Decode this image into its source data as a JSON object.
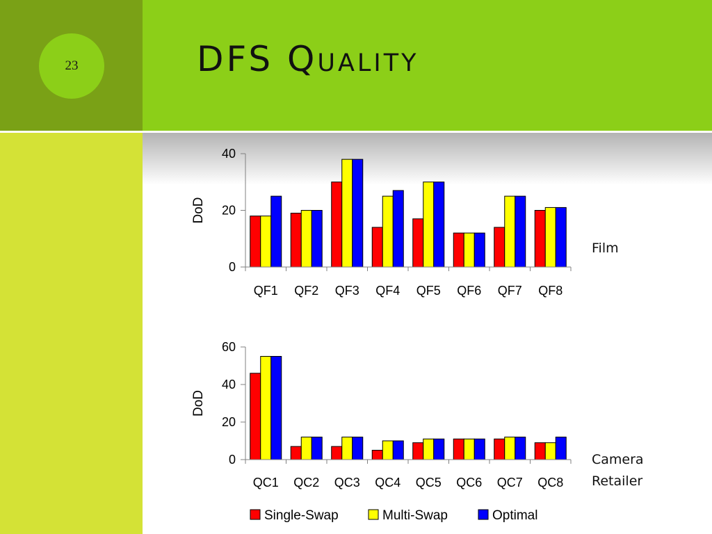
{
  "slide": {
    "number": "23",
    "title": "DFS Quality"
  },
  "colors": {
    "left_top": "#7aa116",
    "left_bottom": "#d4e236",
    "title_band": "#8ccf18",
    "series": [
      "#ff0000",
      "#ffff00",
      "#0000ff"
    ]
  },
  "chart_data": [
    {
      "type": "bar",
      "label": "Film",
      "ylabel": "DoD",
      "ylim": [
        0,
        40
      ],
      "yticks": [
        0,
        20,
        40
      ],
      "categories": [
        "QF1",
        "QF2",
        "QF3",
        "QF4",
        "QF5",
        "QF6",
        "QF7",
        "QF8"
      ],
      "series": [
        {
          "name": "Single-Swap",
          "values": [
            18,
            19,
            30,
            14,
            17,
            12,
            14,
            20
          ]
        },
        {
          "name": "Multi-Swap",
          "values": [
            18,
            20,
            38,
            25,
            30,
            12,
            25,
            21
          ]
        },
        {
          "name": "Optimal",
          "values": [
            25,
            20,
            38,
            27,
            30,
            12,
            25,
            21
          ]
        }
      ]
    },
    {
      "type": "bar",
      "label_lines": [
        "Camera",
        "Retailer"
      ],
      "ylabel": "DoD",
      "ylim": [
        0,
        60
      ],
      "yticks": [
        0,
        20,
        40,
        60
      ],
      "categories": [
        "QC1",
        "QC2",
        "QC3",
        "QC4",
        "QC5",
        "QC6",
        "QC7",
        "QC8"
      ],
      "series": [
        {
          "name": "Single-Swap",
          "values": [
            46,
            7,
            7,
            5,
            9,
            11,
            11,
            9
          ]
        },
        {
          "name": "Multi-Swap",
          "values": [
            55,
            12,
            12,
            10,
            11,
            11,
            12,
            9
          ]
        },
        {
          "name": "Optimal",
          "values": [
            55,
            12,
            12,
            10,
            11,
            11,
            12,
            12
          ]
        }
      ],
      "legend": "bottom"
    }
  ]
}
